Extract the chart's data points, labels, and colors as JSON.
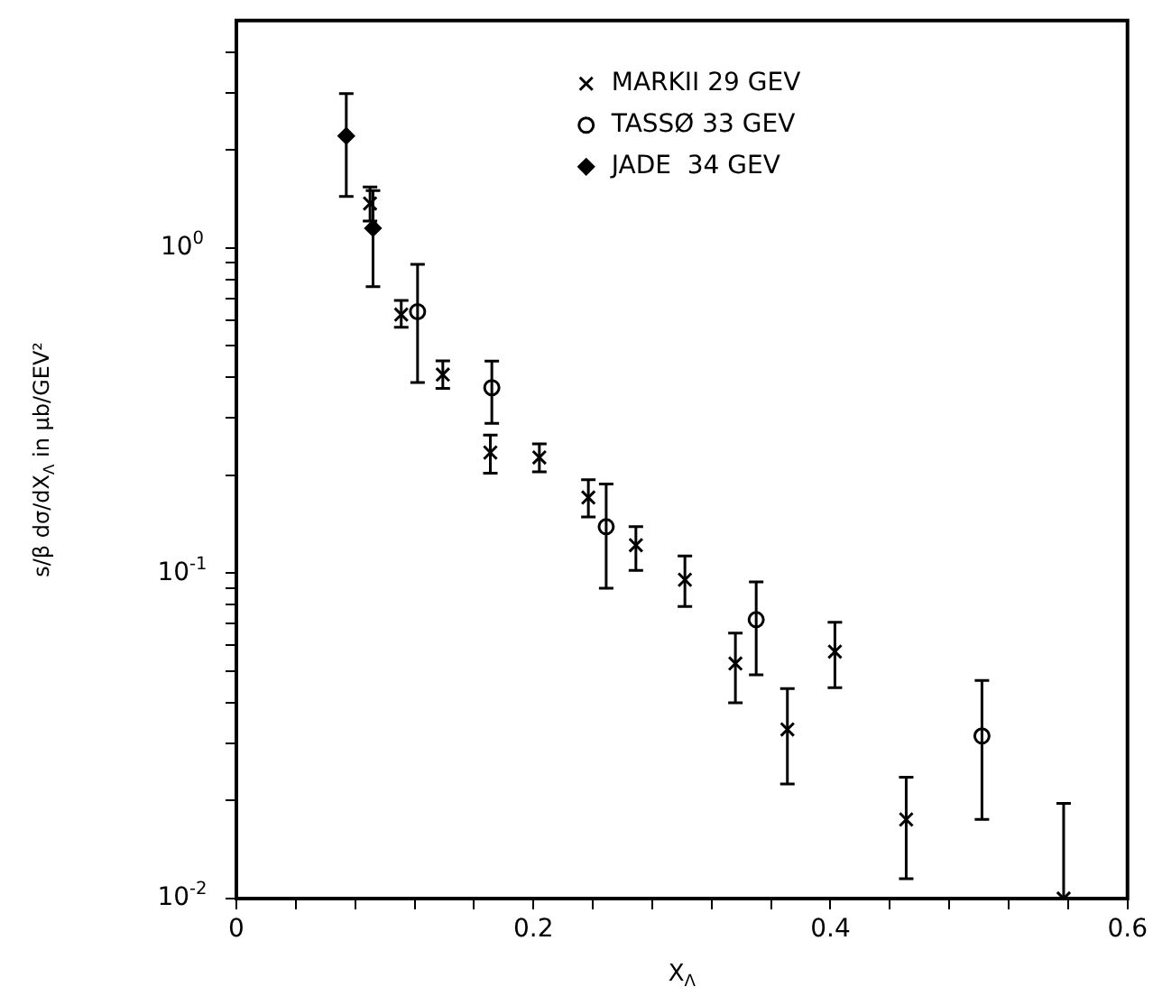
{
  "chart_data": {
    "type": "scatter",
    "xlabel": "X$_{Λ}$",
    "ylabel": "s/β dσ/dX$_{Λ}$ in μb/GEV²",
    "log": "y",
    "grid": false,
    "legend": "top right",
    "xlim": [
      0,
      0.6
    ],
    "xticks": [
      0,
      {
        "value": 0.04,
        "label": null
      },
      {
        "value": 0.08,
        "label": null
      },
      {
        "value": 0.12,
        "label": null
      },
      {
        "value": 0.16,
        "label": null
      },
      0.2,
      {
        "value": 0.24,
        "label": null
      },
      {
        "value": 0.28,
        "label": null
      },
      {
        "value": 0.32,
        "label": null
      },
      {
        "value": 0.36,
        "label": null
      },
      0.4,
      {
        "value": 0.44,
        "label": null
      },
      {
        "value": 0.48,
        "label": null
      },
      {
        "value": 0.52,
        "label": null
      },
      {
        "value": 0.56,
        "label": null
      },
      0.6
    ],
    "ylim": [
      0.01,
      5
    ],
    "yticks": [
      {
        "value": 0.01,
        "label": "10$^{-2}$"
      },
      {
        "value": 0.02,
        "label": null
      },
      {
        "value": 0.03,
        "label": null
      },
      {
        "value": 0.04,
        "label": null
      },
      {
        "value": 0.05,
        "label": null
      },
      {
        "value": 0.06,
        "label": null
      },
      {
        "value": 0.07,
        "label": null
      },
      {
        "value": 0.08,
        "label": null
      },
      {
        "value": 0.09,
        "label": null
      },
      {
        "value": 0.1,
        "label": "10$^{-1}$"
      },
      {
        "value": 0.2,
        "label": null
      },
      {
        "value": 0.3,
        "label": null
      },
      {
        "value": 0.4,
        "label": null
      },
      {
        "value": 0.5,
        "label": null
      },
      {
        "value": 0.6,
        "label": null
      },
      {
        "value": 0.7,
        "label": null
      },
      {
        "value": 0.8,
        "label": null
      },
      {
        "value": 0.9,
        "label": null
      },
      {
        "value": 1,
        "label": "10$^{0}$"
      },
      {
        "value": 2,
        "label": null
      },
      {
        "value": 3,
        "label": null
      },
      {
        "value": 4,
        "label": null
      }
    ],
    "series": [
      {
        "name": "MARKII 29 GEV",
        "color": "#000000",
        "marker": "cross",
        "x": [
          0.09,
          0.111,
          0.139,
          0.171,
          0.204,
          0.237,
          0.269,
          0.302,
          0.336,
          0.371,
          0.403,
          0.451,
          0.557
        ],
        "values": [
          1.37,
          0.624,
          0.408,
          0.235,
          0.227,
          0.171,
          0.122,
          0.0955,
          0.0528,
          0.0331,
          0.0574,
          0.0175,
          0.01
        ],
        "errors": [
          [
            1.21,
            1.54
          ],
          [
            0.57,
            0.69
          ],
          [
            0.37,
            0.45
          ],
          [
            0.203,
            0.266
          ],
          [
            0.205,
            0.25
          ],
          [
            0.149,
            0.194
          ],
          [
            0.102,
            0.139
          ],
          [
            0.079,
            0.113
          ],
          [
            0.04,
            0.0655
          ],
          [
            0.0225,
            0.0442
          ],
          [
            0.0445,
            0.0707
          ],
          [
            0.0115,
            0.0236
          ],
          [
            0.01,
            0.0196
          ]
        ]
      },
      {
        "name": "TASSØ 33 GEV",
        "color": "#000000",
        "marker": "circle",
        "x": [
          0.122,
          0.172,
          0.249,
          0.35,
          0.502
        ],
        "values": [
          0.637,
          0.372,
          0.139,
          0.072,
          0.0316
        ],
        "errors": [
          [
            0.386,
            0.89
          ],
          [
            0.289,
            0.449
          ],
          [
            0.09,
            0.188
          ],
          [
            0.0487,
            0.094
          ],
          [
            0.0175,
            0.0468
          ]
        ]
      },
      {
        "name": "JADE  34 GEV",
        "color": "#000000",
        "marker": "diamond",
        "x": [
          0.074,
          0.092
        ],
        "values": [
          2.21,
          1.15
        ],
        "errors": [
          [
            1.44,
            2.98
          ],
          [
            0.76,
            1.5
          ]
        ]
      }
    ]
  }
}
